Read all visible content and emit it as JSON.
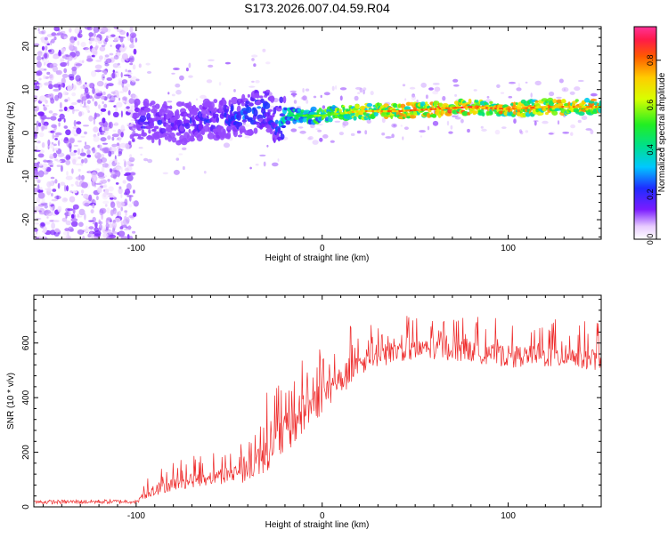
{
  "title": "S173.2026.007.04.59.R04",
  "chart_data": [
    {
      "type": "heatmap",
      "title": "",
      "xlabel": "Height of straight line (km)",
      "ylabel": "Frequency (Hz)",
      "xlim": [
        -155,
        150
      ],
      "ylim": [
        -24.5,
        24.5
      ],
      "xticks": [
        -100,
        0,
        100
      ],
      "xtick_labels": [
        "-100",
        "0",
        "100"
      ],
      "yticks": [
        -20,
        -10,
        0,
        10,
        20
      ],
      "ytick_labels": [
        "-20",
        "-10",
        "0",
        "10",
        "20"
      ],
      "colorbar": {
        "label": "Normalized spectral amplitude",
        "range": [
          0,
          0.95
        ],
        "ticks": [
          0,
          0.2,
          0.4,
          0.6,
          0.8
        ],
        "tick_labels": [
          "0.0",
          "0.2",
          "0.4",
          "0.6",
          "0.8"
        ]
      },
      "feature_track": {
        "description": "dominant spectral line",
        "x": [
          -100,
          -80,
          -60,
          -40,
          -30,
          -25,
          -20,
          0,
          20,
          40,
          60,
          80,
          100,
          120,
          150
        ],
        "y": [
          3,
          2,
          3,
          4,
          6,
          2,
          4,
          4,
          5,
          5,
          5.5,
          6,
          5.5,
          6,
          6
        ],
        "amplitude": [
          0.25,
          0.2,
          0.25,
          0.3,
          0.3,
          0.3,
          0.45,
          0.6,
          0.75,
          0.8,
          0.85,
          0.85,
          0.8,
          0.8,
          0.8
        ]
      },
      "noise_region": {
        "x_from": -155,
        "x_to": -100,
        "amplitude": 0.1
      }
    },
    {
      "type": "line",
      "title": "",
      "xlabel": "Height of straight line (km)",
      "ylabel": "SNR (10 * v/v)",
      "xlim": [
        -155,
        150
      ],
      "ylim": [
        0,
        775
      ],
      "xticks": [
        -100,
        0,
        100
      ],
      "xtick_labels": [
        "-100",
        "0",
        "100"
      ],
      "yticks": [
        0,
        200,
        400,
        600
      ],
      "ytick_labels": [
        "0",
        "200",
        "400",
        "600"
      ],
      "color": "#ee2a2a",
      "series": [
        {
          "name": "SNR",
          "envelope_x": [
            -155,
            -100,
            -95,
            -80,
            -60,
            -40,
            -30,
            -20,
            -10,
            0,
            10,
            20,
            30,
            40,
            60,
            80,
            100,
            120,
            150
          ],
          "envelope_base": [
            10,
            12,
            30,
            60,
            80,
            90,
            130,
            190,
            260,
            340,
            410,
            460,
            510,
            530,
            540,
            530,
            510,
            510,
            500
          ],
          "envelope_peak": [
            25,
            28,
            110,
            170,
            200,
            270,
            420,
            520,
            570,
            620,
            650,
            680,
            690,
            700,
            700,
            700,
            690,
            690,
            680
          ]
        }
      ]
    }
  ]
}
